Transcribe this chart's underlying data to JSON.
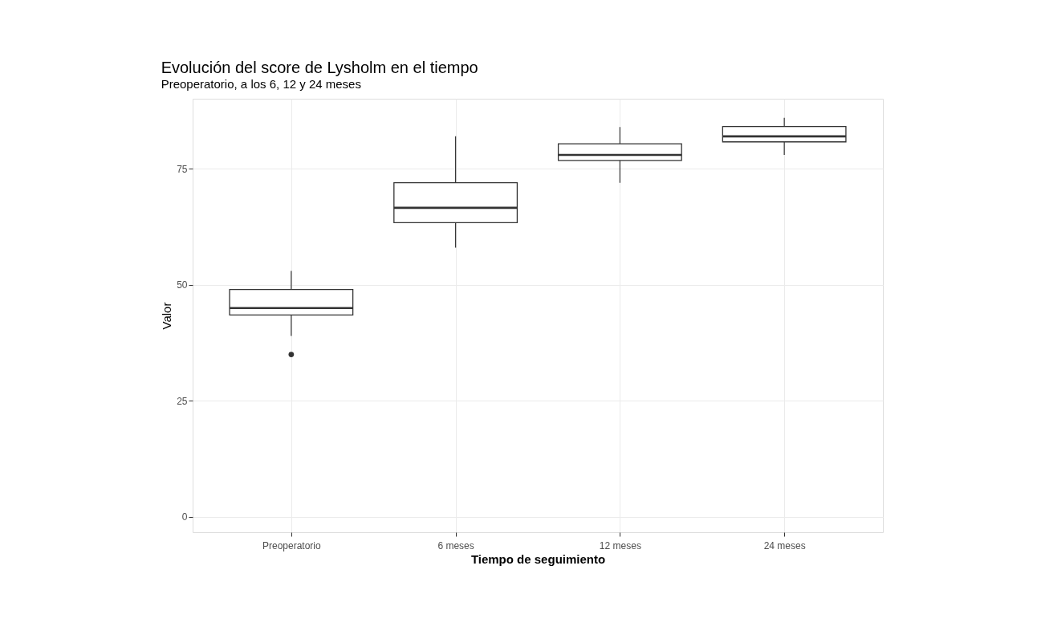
{
  "chart_data": {
    "type": "box",
    "title": "Evolución del score de Lysholm en el tiempo",
    "subtitle": "Preoperatorio, a los 6, 12 y 24 meses",
    "xlabel": "Tiempo de seguimiento",
    "ylabel": "Valor",
    "categories": [
      "Preoperatorio",
      "6 meses",
      "12 meses",
      "24 meses"
    ],
    "boxes": [
      {
        "low": 39,
        "q1": 43.5,
        "median": 45,
        "q3": 49,
        "high": 53,
        "outliers": [
          35
        ]
      },
      {
        "low": 58,
        "q1": 63.4,
        "median": 66.6,
        "q3": 72,
        "high": 82
      },
      {
        "low": 72,
        "q1": 76.8,
        "median": 78,
        "q3": 80.4,
        "high": 84
      },
      {
        "low": 78,
        "q1": 80.8,
        "median": 82,
        "q3": 84.1,
        "high": 86
      }
    ],
    "color": "#333333",
    "ylim": [
      -3.3,
      90.1
    ],
    "yticks": [
      0,
      25,
      50,
      75
    ],
    "grid": true
  }
}
